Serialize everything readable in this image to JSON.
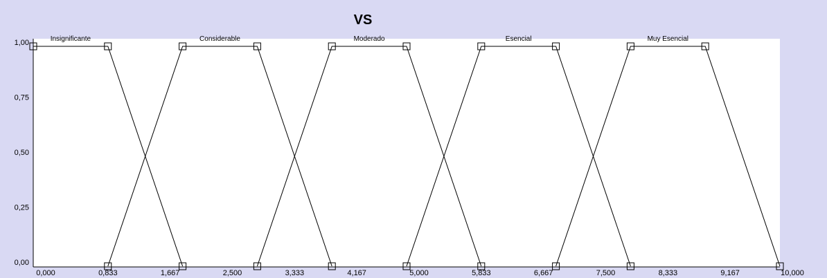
{
  "chart_data": {
    "type": "line",
    "title": "VS",
    "xlabel": "",
    "ylabel": "",
    "xlim": [
      0,
      10
    ],
    "ylim": [
      0,
      1
    ],
    "x_ticks": [
      "0,000",
      "0,833",
      "1,667",
      "2,500",
      "3,333",
      "4,167",
      "5,000",
      "5,833",
      "6,667",
      "7,500",
      "8,333",
      "9,167",
      "10,000"
    ],
    "y_ticks": [
      "0,00",
      "0,25",
      "0,50",
      "0,75",
      "1,00"
    ],
    "grid": false,
    "legend": "none",
    "series": [
      {
        "name": "Insignificante",
        "x": [
          0,
          1.0,
          2.0
        ],
        "y": [
          1,
          1,
          0
        ]
      },
      {
        "name": "Considerable",
        "x": [
          1.0,
          2.0,
          3.0,
          4.0
        ],
        "y": [
          0,
          1,
          1,
          0
        ]
      },
      {
        "name": "Moderado",
        "x": [
          3.0,
          4.0,
          5.0,
          6.0
        ],
        "y": [
          0,
          1,
          1,
          0
        ]
      },
      {
        "name": "Esencial",
        "x": [
          5.0,
          6.0,
          7.0,
          8.0
        ],
        "y": [
          0,
          1,
          1,
          0
        ]
      },
      {
        "name": "Muy Esencial",
        "x": [
          7.0,
          8.0,
          9.0,
          10.0
        ],
        "y": [
          0,
          1,
          1,
          0
        ]
      }
    ],
    "colors": {
      "background": "#d9d9f3",
      "plot": "#ffffff",
      "line": "#000000"
    }
  }
}
